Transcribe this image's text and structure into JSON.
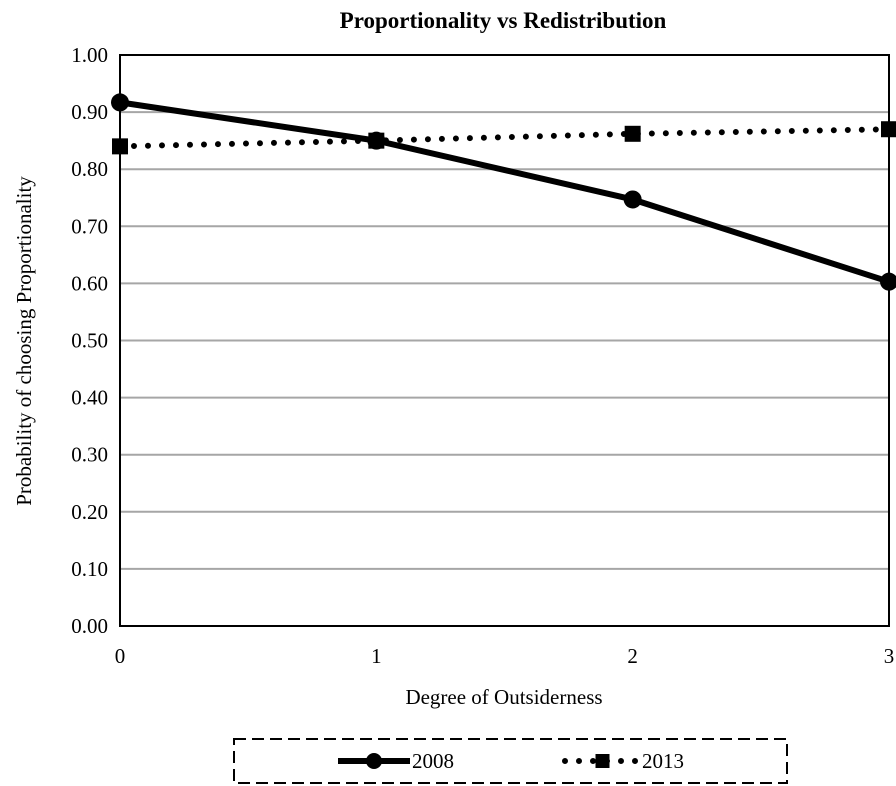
{
  "chart_data": {
    "type": "line",
    "title": "Proportionality vs Redistribution",
    "xlabel": "Degree of Outsiderness",
    "ylabel": "Probability of choosing Proportionality",
    "x": [
      0,
      1,
      2,
      3
    ],
    "x_ticks": [
      "0",
      "1",
      "2",
      "3"
    ],
    "y_ticks": [
      "0.00",
      "0.10",
      "0.20",
      "0.30",
      "0.40",
      "0.50",
      "0.60",
      "0.70",
      "0.80",
      "0.90",
      "1.00"
    ],
    "ylim": [
      0,
      1
    ],
    "xlim": [
      0,
      3
    ],
    "grid": "horizontal",
    "legend_position": "bottom",
    "series": [
      {
        "name": "2008",
        "values": [
          0.917,
          0.85,
          0.747,
          0.603
        ],
        "style": "solid",
        "marker": "circle",
        "color": "#000000"
      },
      {
        "name": "2013",
        "values": [
          0.84,
          0.85,
          0.862,
          0.87
        ],
        "style": "dotted",
        "marker": "square",
        "color": "#000000"
      }
    ]
  }
}
